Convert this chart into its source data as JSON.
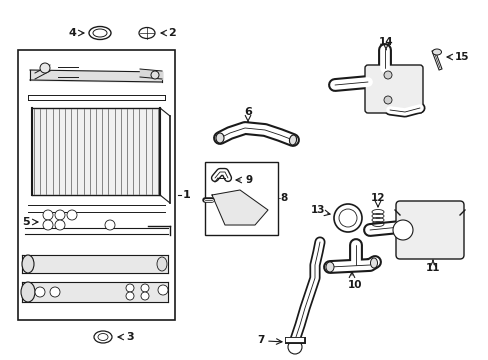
{
  "bg_color": "#ffffff",
  "line_color": "#1a1a1a",
  "figsize": [
    4.89,
    3.6
  ],
  "dpi": 100,
  "gray": "#888888",
  "light_gray": "#cccccc"
}
